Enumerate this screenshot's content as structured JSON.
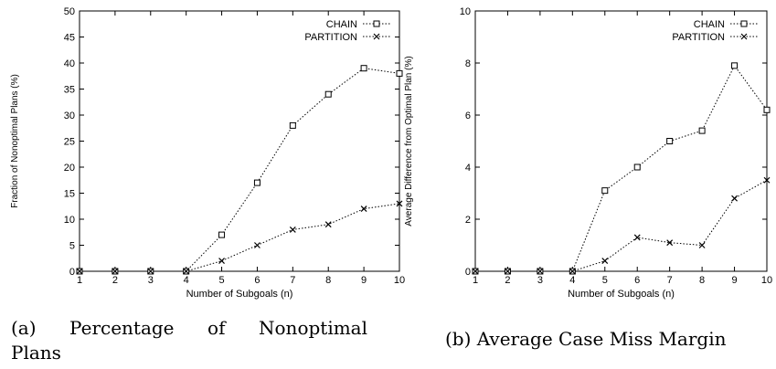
{
  "captions": {
    "a_line1": [
      "(a)",
      "Percentage",
      "of",
      "Nonoptimal"
    ],
    "a_line2": "Plans",
    "b": "(b) Average Case Miss Margin"
  },
  "chart_data": [
    {
      "type": "line",
      "title": "",
      "xlabel": "Number of Subgoals (n)",
      "ylabel": "Fraction of Nonoptimal Plans (%)",
      "x": [
        1,
        2,
        3,
        4,
        5,
        6,
        7,
        8,
        9,
        10
      ],
      "xlim": [
        1,
        10
      ],
      "ylim": [
        0,
        50
      ],
      "xticks": [
        1,
        2,
        3,
        4,
        5,
        6,
        7,
        8,
        9,
        10
      ],
      "yticks": [
        0,
        5,
        10,
        15,
        20,
        25,
        30,
        35,
        40,
        45,
        50
      ],
      "grid": false,
      "legend_position": "top-right",
      "series": [
        {
          "name": "CHAIN",
          "marker": "square",
          "values": [
            0,
            0,
            0,
            0,
            7,
            17,
            28,
            34,
            39,
            38
          ]
        },
        {
          "name": "PARTITION",
          "marker": "x",
          "values": [
            0,
            0,
            0,
            0,
            2,
            5,
            8,
            9,
            12,
            13
          ]
        }
      ]
    },
    {
      "type": "line",
      "title": "",
      "xlabel": "Number of Subgoals (n)",
      "ylabel": "Average Difference from Optimal Plan (%)",
      "x": [
        1,
        2,
        3,
        4,
        5,
        6,
        7,
        8,
        9,
        10
      ],
      "xlim": [
        1,
        10
      ],
      "ylim": [
        0,
        10
      ],
      "xticks": [
        1,
        2,
        3,
        4,
        5,
        6,
        7,
        8,
        9,
        10
      ],
      "yticks": [
        0,
        2,
        4,
        6,
        8,
        10
      ],
      "grid": false,
      "legend_position": "top-right",
      "series": [
        {
          "name": "CHAIN",
          "marker": "square",
          "values": [
            0,
            0,
            0,
            0,
            3.1,
            4.0,
            5.0,
            5.4,
            7.9,
            6.2
          ]
        },
        {
          "name": "PARTITION",
          "marker": "x",
          "values": [
            0,
            0,
            0,
            0,
            0.4,
            1.3,
            1.1,
            1.0,
            2.8,
            3.5
          ]
        }
      ]
    }
  ]
}
